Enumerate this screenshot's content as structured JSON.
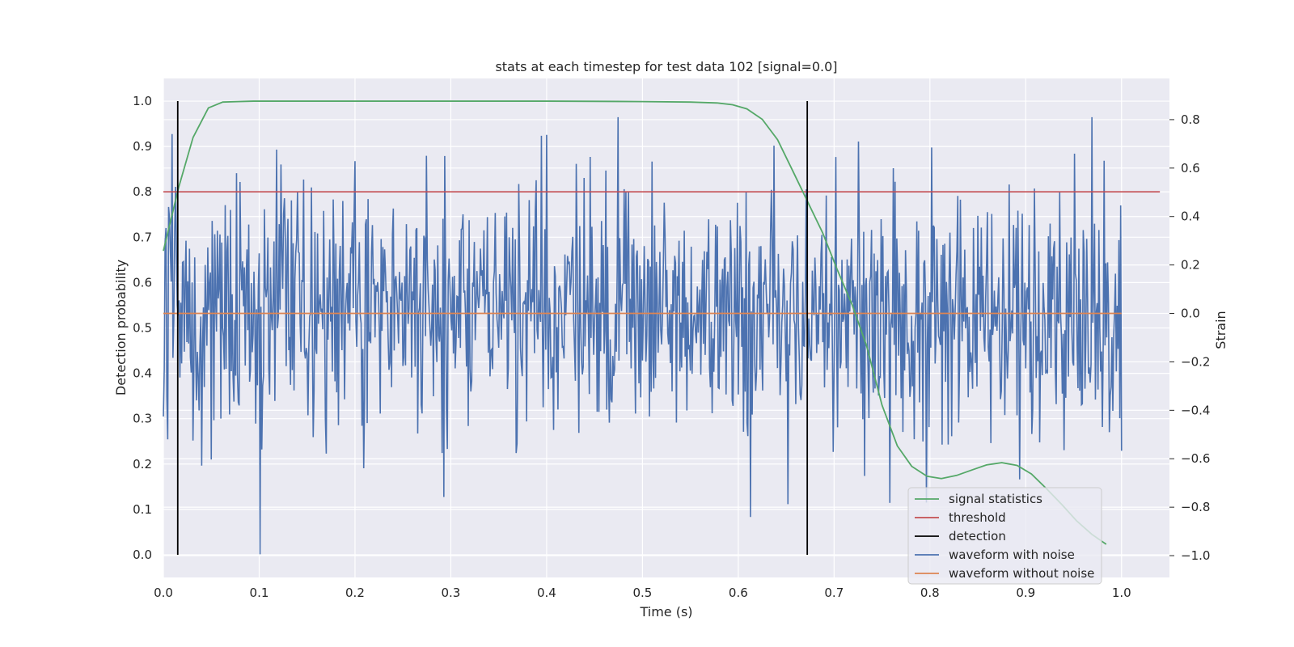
{
  "chart_data": {
    "type": "line",
    "title": "stats at each timestep for test data 102 [signal=0.0]",
    "xlabel": "Time (s)",
    "ylabel": "Detection probability",
    "ylabel_right": "Strain",
    "xlim": [
      0.0,
      1.05
    ],
    "ylim": [
      -0.05,
      1.05
    ],
    "ylim_right": [
      -1.09,
      0.97
    ],
    "x_ticks": [
      "0.0",
      "0.1",
      "0.2",
      "0.3",
      "0.4",
      "0.5",
      "0.6",
      "0.7",
      "0.8",
      "0.9",
      "1.0"
    ],
    "y_ticks": [
      "0.0",
      "0.1",
      "0.2",
      "0.3",
      "0.4",
      "0.5",
      "0.6",
      "0.7",
      "0.8",
      "0.9",
      "1.0"
    ],
    "y_ticks_right": [
      "−1.0",
      "−0.8",
      "−0.6",
      "−0.4",
      "−0.2",
      "0.0",
      "0.2",
      "0.4",
      "0.6",
      "0.8"
    ],
    "grid": true,
    "legend_position": "bottom-right",
    "colors": {
      "background": "#eaeaf2",
      "grid": "#ffffff",
      "signal": "#55a868",
      "threshold": "#c44e52",
      "detection": "#000000",
      "noisy": "#4c72b0",
      "clean": "#dd8452"
    },
    "series": [
      {
        "name": "signal statistics",
        "axis": "left",
        "x": [
          0.0,
          0.016,
          0.031,
          0.047,
          0.062,
          0.078,
          0.094,
          0.109,
          0.125,
          0.2,
          0.3,
          0.4,
          0.5,
          0.55,
          0.578,
          0.594,
          0.609,
          0.625,
          0.641,
          0.656,
          0.672,
          0.688,
          0.703,
          0.719,
          0.734,
          0.75,
          0.766,
          0.781,
          0.797,
          0.812,
          0.828,
          0.844,
          0.859,
          0.875,
          0.891,
          0.906,
          0.922,
          0.938,
          0.953,
          0.969,
          0.984
        ],
        "y": [
          0.67,
          0.81,
          0.92,
          0.985,
          0.998,
          0.999,
          1.0,
          1.0,
          1.0,
          1.0,
          1.0,
          1.0,
          0.999,
          0.998,
          0.996,
          0.992,
          0.983,
          0.96,
          0.915,
          0.85,
          0.78,
          0.71,
          0.63,
          0.55,
          0.46,
          0.33,
          0.24,
          0.195,
          0.173,
          0.168,
          0.175,
          0.187,
          0.198,
          0.203,
          0.197,
          0.178,
          0.145,
          0.11,
          0.075,
          0.045,
          0.023
        ]
      },
      {
        "name": "threshold",
        "axis": "left",
        "x": [
          0.0,
          1.04
        ],
        "y": [
          0.8,
          0.8
        ]
      },
      {
        "name": "detection",
        "axis": "left",
        "type": "vlines",
        "x": [
          0.015,
          0.672
        ],
        "ymin": 0.0,
        "ymax": 1.0
      },
      {
        "name": "waveform with noise",
        "axis": "right",
        "type": "noise",
        "x_start": 0.0,
        "x_end": 1.0,
        "mean": 0.0,
        "approx_std": 0.27,
        "range": [
          -1.0,
          0.81
        ]
      },
      {
        "name": "waveform without noise",
        "axis": "right",
        "x": [
          0.0,
          1.0
        ],
        "y": [
          0.0,
          0.0
        ]
      }
    ],
    "legend": [
      "signal statistics",
      "threshold",
      "detection",
      "waveform with noise",
      "waveform without noise"
    ]
  }
}
